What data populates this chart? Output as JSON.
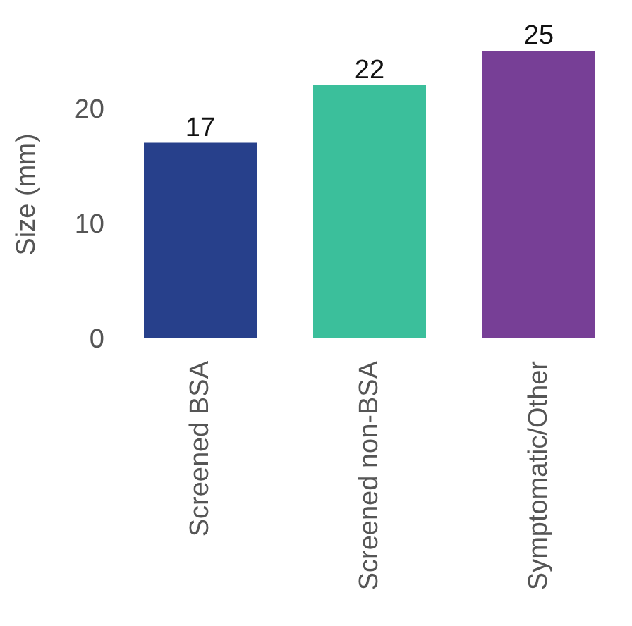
{
  "chart_data": {
    "type": "bar",
    "ylabel": "Size (mm)",
    "categories": [
      "Screened BSA",
      "Screened non-BSA",
      "Symptomatic/Other"
    ],
    "values": [
      17,
      22,
      25
    ],
    "colors": [
      "#27408b",
      "#3bbf9b",
      "#773f96"
    ],
    "ylim": [
      0,
      25
    ],
    "yticks": [
      0,
      10,
      20
    ],
    "grid": false,
    "data_labels": true
  }
}
